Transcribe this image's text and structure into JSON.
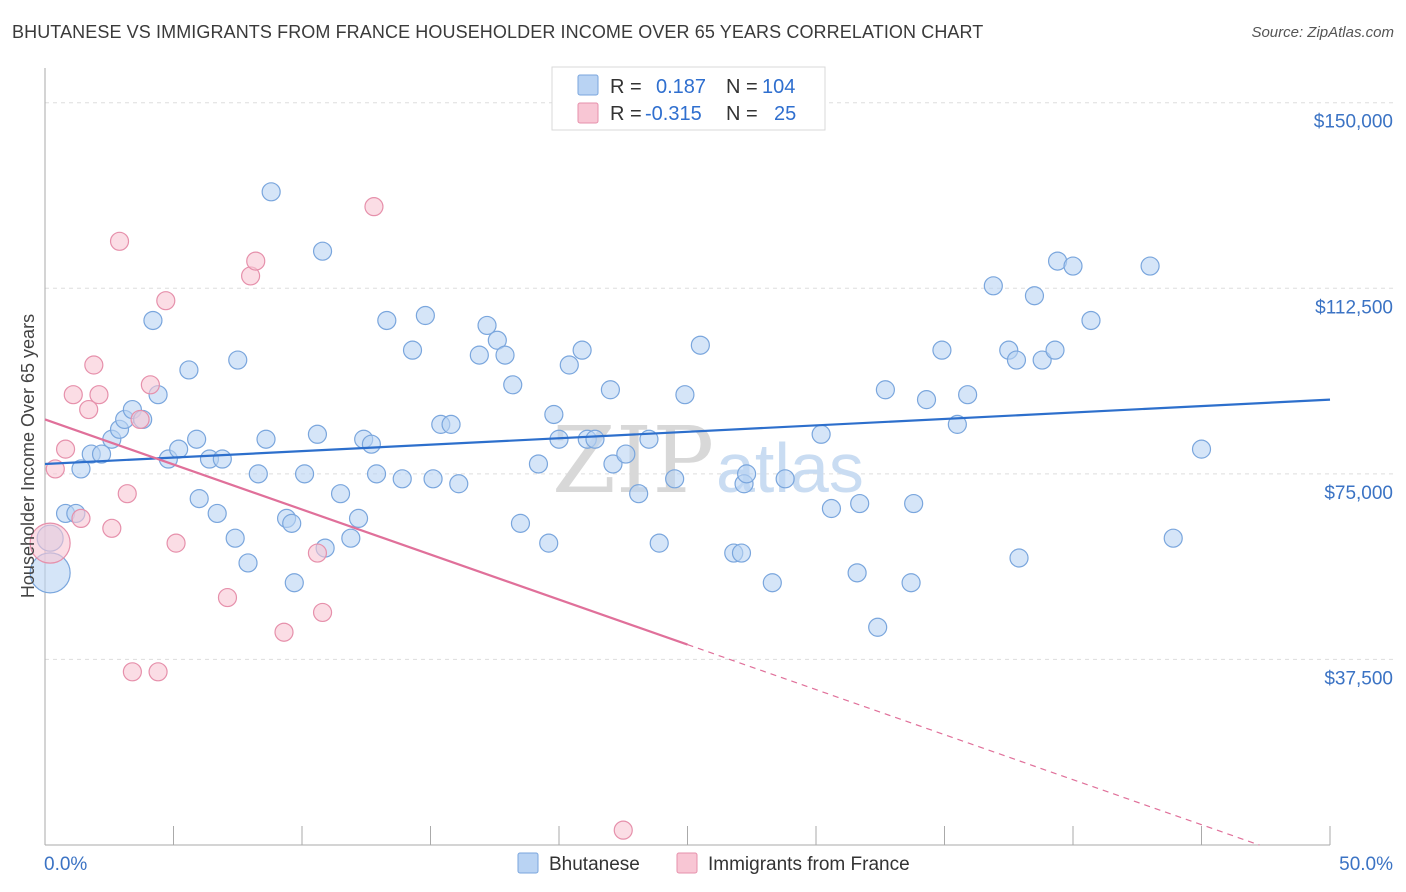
{
  "title": "BHUTANESE VS IMMIGRANTS FROM FRANCE HOUSEHOLDER INCOME OVER 65 YEARS CORRELATION CHART",
  "source": "Source: ZipAtlas.com",
  "watermark": {
    "zip": "ZIP",
    "atlas": "atlas"
  },
  "colors": {
    "blue_fill": "#b9d3f3",
    "blue_stroke": "#7aa6dd",
    "blue_line": "#2d6fcc",
    "pink_fill": "#f8c6d4",
    "pink_stroke": "#e690ab",
    "pink_line": "#e0709a",
    "tick_text": "#3b73c4",
    "grid": "#dddddd"
  },
  "legend": {
    "rows": [
      {
        "r_label": "R = ",
        "r_value": "0.187",
        "n_label": "N = ",
        "n_value": "104"
      },
      {
        "r_label": "R = ",
        "r_value": "-0.315",
        "n_label": "N = ",
        "n_value": "25"
      }
    ]
  },
  "bottom_legend": [
    "Bhutanese",
    "Immigrants from France"
  ],
  "chart_data": {
    "type": "scatter",
    "title": "BHUTANESE VS IMMIGRANTS FROM FRANCE HOUSEHOLDER INCOME OVER 65 YEARS CORRELATION CHART",
    "xlabel": "",
    "ylabel": "Householder Income Over 65 years",
    "xlim": [
      0,
      50
    ],
    "ylim": [
      0,
      155000
    ],
    "x_tick_labels": [
      "0.0%",
      "50.0%"
    ],
    "y_ticks": [
      37500,
      75000,
      112500,
      150000
    ],
    "y_tick_labels": [
      "$37,500",
      "$75,000",
      "$112,500",
      "$150,000"
    ],
    "grid": true,
    "legend_position": "top-center",
    "series": [
      {
        "name": "Bhutanese",
        "color": "#b9d3f3",
        "trend": {
          "x": [
            0,
            50
          ],
          "y": [
            77000,
            90000
          ],
          "solid_to": 50
        },
        "points": [
          [
            0.2,
            55000,
            "lg"
          ],
          [
            0.2,
            62000,
            "md"
          ],
          [
            0.8,
            67000
          ],
          [
            1.2,
            67000
          ],
          [
            1.4,
            76000
          ],
          [
            1.8,
            79000
          ],
          [
            2.2,
            79000
          ],
          [
            2.6,
            82000
          ],
          [
            2.9,
            84000
          ],
          [
            3.1,
            86000
          ],
          [
            3.4,
            88000
          ],
          [
            3.8,
            86000
          ],
          [
            4.2,
            106000
          ],
          [
            4.4,
            91000
          ],
          [
            4.8,
            78000
          ],
          [
            5.2,
            80000
          ],
          [
            5.6,
            96000
          ],
          [
            5.9,
            82000
          ],
          [
            6.0,
            70000
          ],
          [
            6.4,
            78000
          ],
          [
            6.7,
            67000
          ],
          [
            6.9,
            78000
          ],
          [
            7.4,
            62000
          ],
          [
            7.5,
            98000
          ],
          [
            7.9,
            57000
          ],
          [
            8.3,
            75000
          ],
          [
            8.6,
            82000
          ],
          [
            8.8,
            132000
          ],
          [
            9.4,
            66000
          ],
          [
            9.6,
            65000
          ],
          [
            9.7,
            53000
          ],
          [
            10.1,
            75000
          ],
          [
            10.6,
            83000
          ],
          [
            10.8,
            120000
          ],
          [
            10.9,
            60000
          ],
          [
            11.5,
            71000
          ],
          [
            11.9,
            62000
          ],
          [
            12.2,
            66000
          ],
          [
            12.4,
            82000
          ],
          [
            12.7,
            81000
          ],
          [
            12.9,
            75000
          ],
          [
            13.3,
            106000
          ],
          [
            13.9,
            74000
          ],
          [
            14.3,
            100000
          ],
          [
            14.8,
            107000
          ],
          [
            15.1,
            74000
          ],
          [
            15.4,
            85000
          ],
          [
            15.8,
            85000
          ],
          [
            16.1,
            73000
          ],
          [
            16.9,
            99000
          ],
          [
            17.2,
            105000
          ],
          [
            17.6,
            102000
          ],
          [
            17.9,
            99000
          ],
          [
            18.2,
            93000
          ],
          [
            18.5,
            65000
          ],
          [
            19.2,
            77000
          ],
          [
            19.6,
            61000
          ],
          [
            19.8,
            87000
          ],
          [
            20.0,
            82000
          ],
          [
            20.4,
            97000
          ],
          [
            20.9,
            100000
          ],
          [
            21.1,
            82000
          ],
          [
            21.4,
            82000
          ],
          [
            22.0,
            92000
          ],
          [
            22.1,
            77000
          ],
          [
            22.6,
            79000
          ],
          [
            23.1,
            71000
          ],
          [
            23.5,
            82000
          ],
          [
            23.9,
            61000
          ],
          [
            24.5,
            74000
          ],
          [
            24.9,
            91000
          ],
          [
            25.5,
            101000
          ],
          [
            26.8,
            59000
          ],
          [
            27.1,
            59000
          ],
          [
            27.2,
            73000
          ],
          [
            27.3,
            75000
          ],
          [
            28.3,
            53000
          ],
          [
            28.8,
            74000
          ],
          [
            30.2,
            83000
          ],
          [
            30.6,
            68000
          ],
          [
            31.6,
            55000
          ],
          [
            31.7,
            69000
          ],
          [
            32.4,
            44000
          ],
          [
            32.7,
            92000
          ],
          [
            33.7,
            53000
          ],
          [
            33.8,
            69000
          ],
          [
            34.3,
            90000
          ],
          [
            34.9,
            100000
          ],
          [
            35.5,
            85000
          ],
          [
            35.9,
            91000
          ],
          [
            36.9,
            113000
          ],
          [
            37.5,
            100000
          ],
          [
            37.8,
            98000
          ],
          [
            37.9,
            58000
          ],
          [
            38.5,
            111000
          ],
          [
            38.8,
            98000
          ],
          [
            39.3,
            100000
          ],
          [
            39.4,
            118000
          ],
          [
            40.0,
            117000
          ],
          [
            40.7,
            106000
          ],
          [
            43.0,
            117000
          ],
          [
            43.9,
            62000
          ],
          [
            45.0,
            80000
          ]
        ]
      },
      {
        "name": "Immigrants from France",
        "color": "#f8c6d4",
        "trend": {
          "x": [
            0,
            50
          ],
          "y": [
            86000,
            -5000
          ],
          "solid_to": 25
        },
        "points": [
          [
            0.2,
            61000,
            "lg"
          ],
          [
            0.4,
            76000
          ],
          [
            0.8,
            80000
          ],
          [
            1.1,
            91000
          ],
          [
            1.4,
            66000
          ],
          [
            1.7,
            88000
          ],
          [
            1.9,
            97000
          ],
          [
            2.1,
            91000
          ],
          [
            2.6,
            64000
          ],
          [
            2.9,
            122000
          ],
          [
            3.2,
            71000
          ],
          [
            3.4,
            35000
          ],
          [
            3.7,
            86000
          ],
          [
            4.1,
            93000
          ],
          [
            4.4,
            35000
          ],
          [
            4.7,
            110000
          ],
          [
            5.1,
            61000
          ],
          [
            7.1,
            50000
          ],
          [
            8.0,
            115000
          ],
          [
            8.2,
            118000
          ],
          [
            9.3,
            43000
          ],
          [
            10.6,
            59000
          ],
          [
            10.8,
            47000
          ],
          [
            12.8,
            129000
          ],
          [
            22.5,
            3000
          ]
        ]
      }
    ]
  }
}
